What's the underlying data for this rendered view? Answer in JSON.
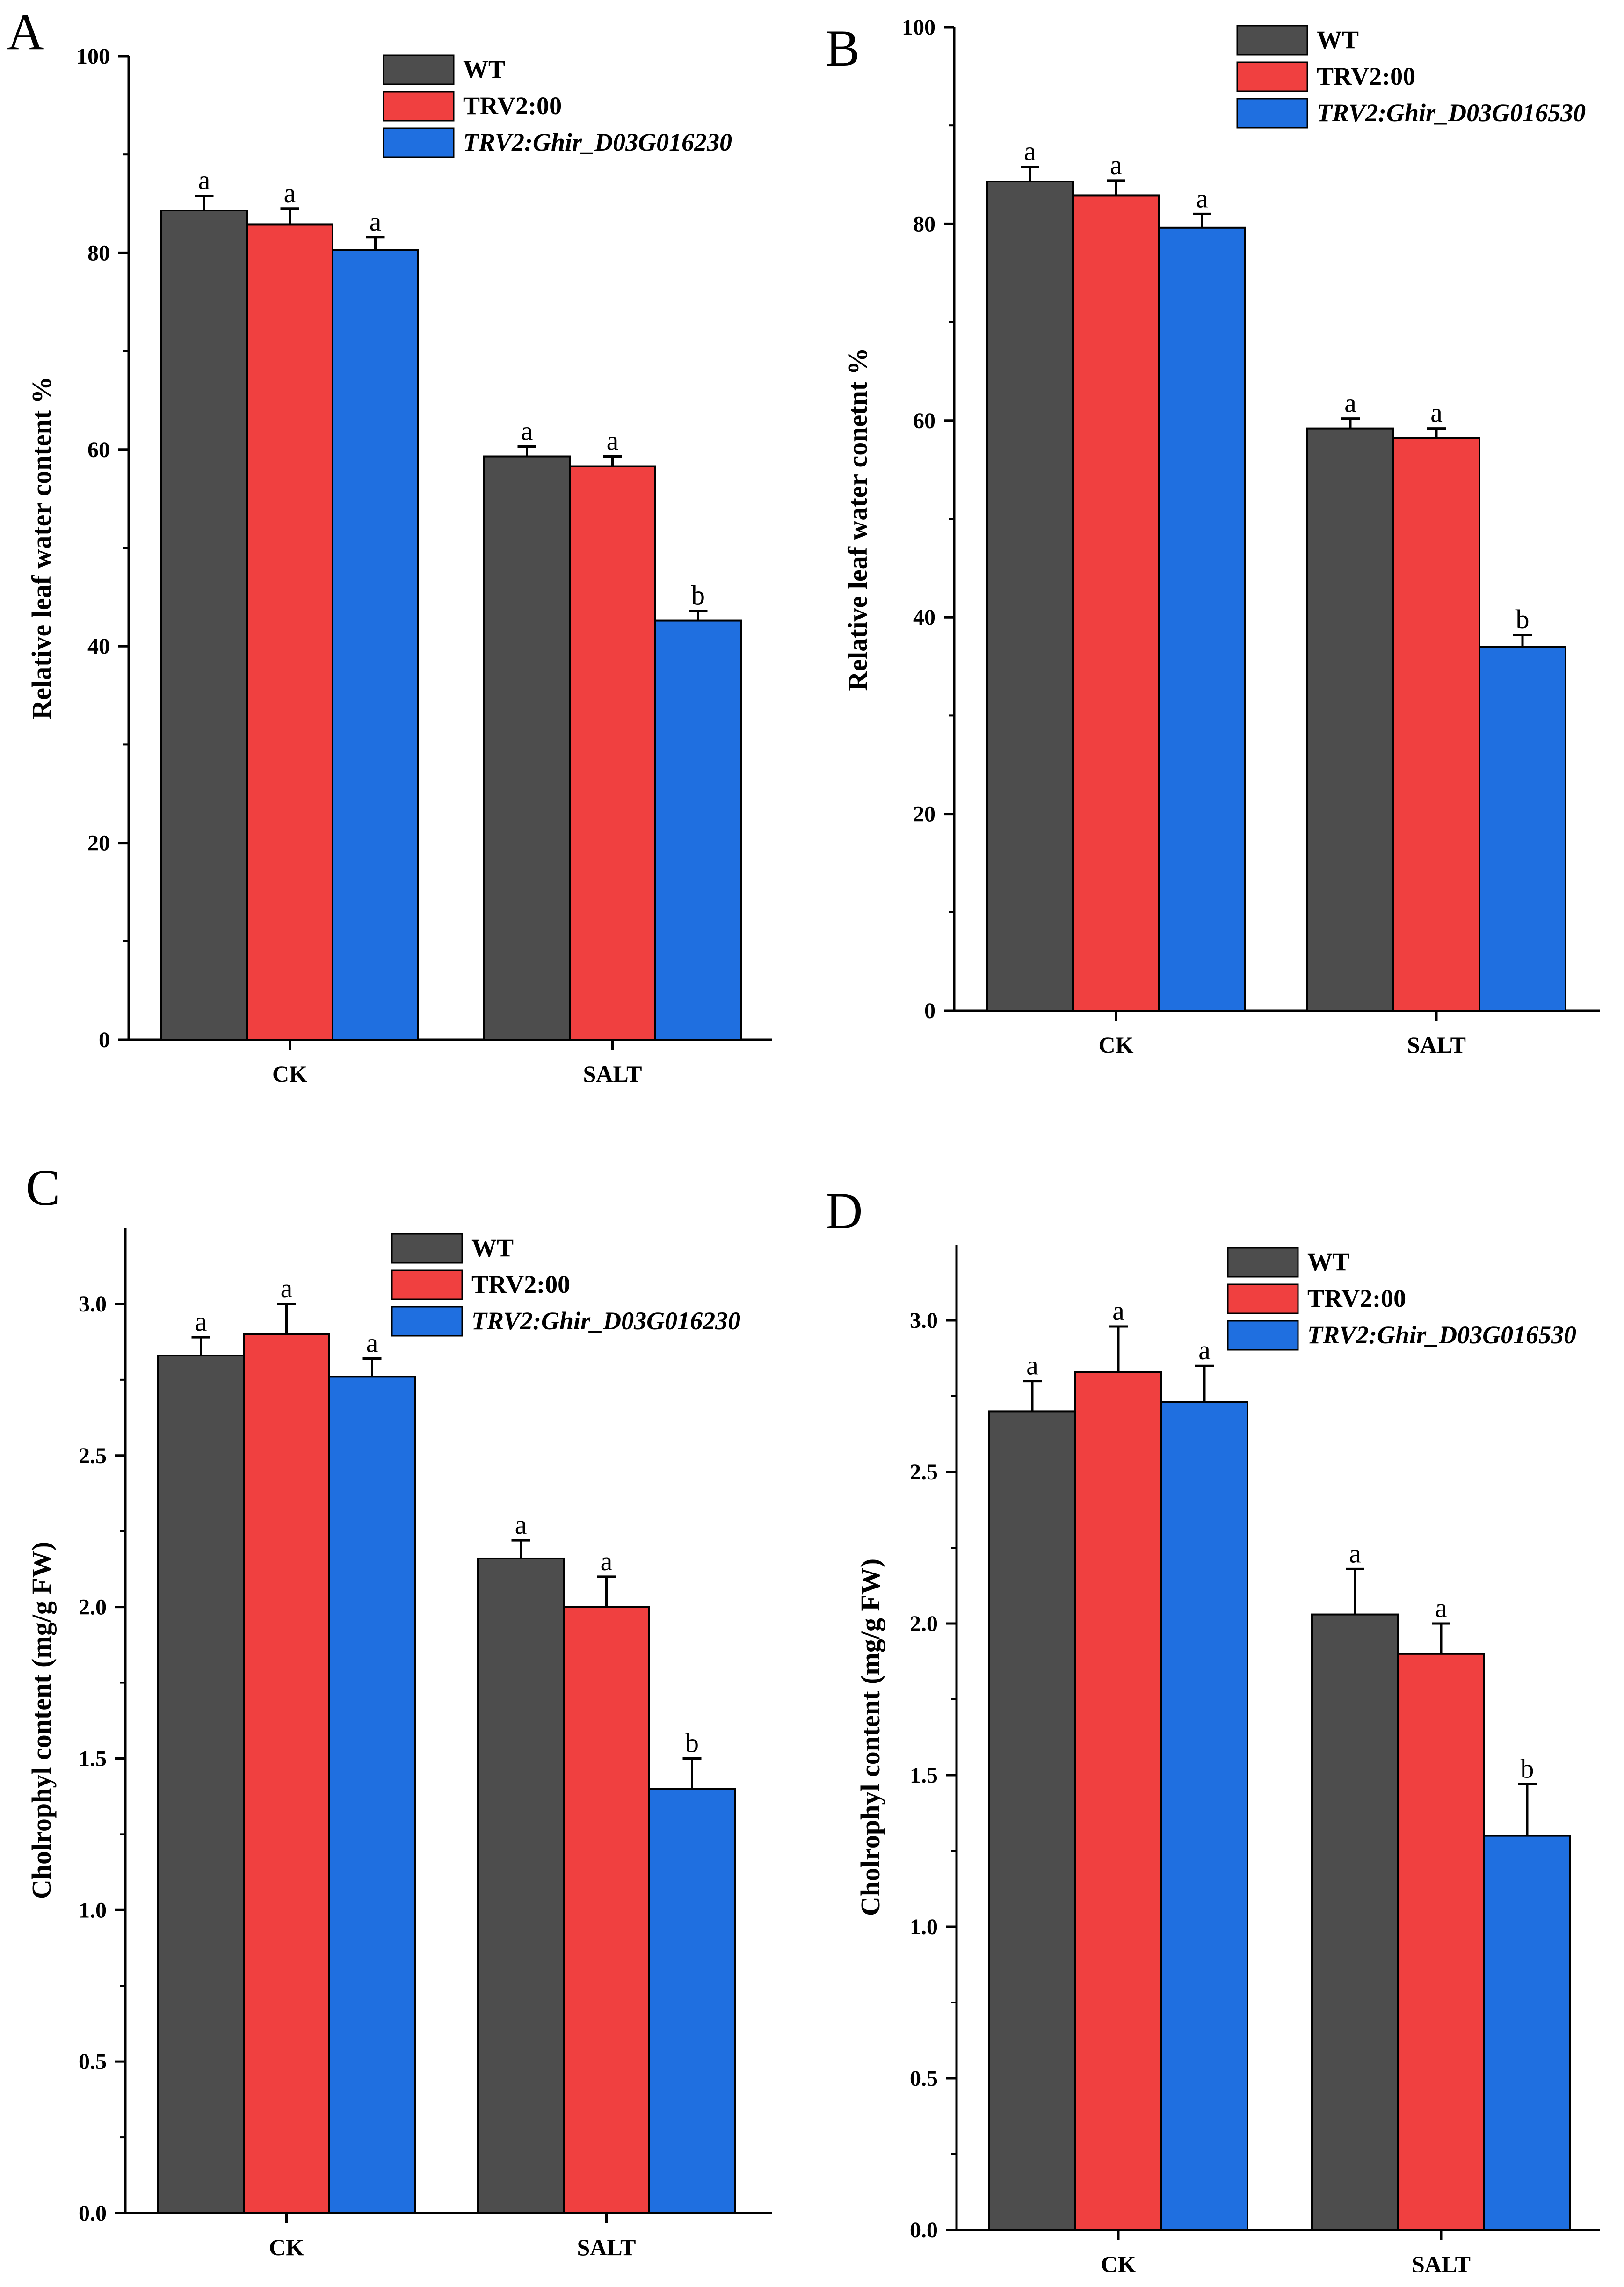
{
  "colors": {
    "WT": "#4d4d4d",
    "TRV2:00": "#f04040",
    "TRV2:Ghir": "#1f6fe0",
    "axis": "#000000"
  },
  "chart_data": [
    {
      "panel": "A",
      "type": "bar",
      "categories": [
        "CK",
        "SALT"
      ],
      "ylabel": "Relative leaf water content %",
      "ylim": [
        0,
        100
      ],
      "yticks": [
        "0",
        "20",
        "40",
        "60",
        "80",
        "100"
      ],
      "series": [
        {
          "name": "WT",
          "italic": false,
          "values": [
            84.3,
            59.3
          ],
          "errors": [
            1.5,
            1.0
          ],
          "labels": [
            "a",
            "a"
          ]
        },
        {
          "name": "TRV2:00",
          "italic": false,
          "values": [
            82.9,
            58.3
          ],
          "errors": [
            1.6,
            1.0
          ],
          "labels": [
            "a",
            "a"
          ]
        },
        {
          "name": "TRV2:Ghir_D03G016230",
          "italic": true,
          "values": [
            80.3,
            42.6
          ],
          "errors": [
            1.3,
            1.0
          ],
          "labels": [
            "a",
            "b"
          ]
        }
      ]
    },
    {
      "panel": "B",
      "type": "bar",
      "categories": [
        "CK",
        "SALT"
      ],
      "ylabel": "Relative leaf water conetnt %",
      "ylim": [
        0,
        100
      ],
      "yticks": [
        "0",
        "20",
        "40",
        "60",
        "80",
        "100"
      ],
      "series": [
        {
          "name": "WT",
          "italic": false,
          "values": [
            84.3,
            59.2
          ],
          "errors": [
            1.5,
            1.0
          ],
          "labels": [
            "a",
            "a"
          ]
        },
        {
          "name": "TRV2:00",
          "italic": false,
          "values": [
            82.9,
            58.2
          ],
          "errors": [
            1.5,
            1.0
          ],
          "labels": [
            "a",
            "a"
          ]
        },
        {
          "name": "TRV2:Ghir_D03G016530",
          "italic": true,
          "values": [
            79.6,
            37.0
          ],
          "errors": [
            1.4,
            1.2
          ],
          "labels": [
            "a",
            "b"
          ]
        }
      ]
    },
    {
      "panel": "C",
      "type": "bar",
      "categories": [
        "CK",
        "SALT"
      ],
      "ylabel": "Cholrophyl content (mg/g FW)",
      "ylim": [
        0,
        3.25
      ],
      "yticks": [
        "0.0",
        "0.5",
        "1.0",
        "1.5",
        "2.0",
        "2.5",
        "3.0"
      ],
      "series": [
        {
          "name": "WT",
          "italic": false,
          "values": [
            2.83,
            2.16
          ],
          "errors": [
            0.06,
            0.06
          ],
          "labels": [
            "a",
            "a"
          ]
        },
        {
          "name": "TRV2:00",
          "italic": false,
          "values": [
            2.9,
            2.0
          ],
          "errors": [
            0.1,
            0.1
          ],
          "labels": [
            "a",
            "a"
          ]
        },
        {
          "name": "TRV2:Ghir_D03G016230",
          "italic": true,
          "values": [
            2.76,
            1.4
          ],
          "errors": [
            0.06,
            0.1
          ],
          "labels": [
            "a",
            "b"
          ]
        }
      ]
    },
    {
      "panel": "D",
      "type": "bar",
      "categories": [
        "CK",
        "SALT"
      ],
      "ylabel": "Cholrophyl content (mg/g FW)",
      "ylim": [
        0,
        3.25
      ],
      "yticks": [
        "0.0",
        "0.5",
        "1.0",
        "1.5",
        "2.0",
        "2.5",
        "3.0"
      ],
      "series": [
        {
          "name": "WT",
          "italic": false,
          "values": [
            2.7,
            2.03
          ],
          "errors": [
            0.1,
            0.15
          ],
          "labels": [
            "a",
            "a"
          ]
        },
        {
          "name": "TRV2:00",
          "italic": false,
          "values": [
            2.83,
            1.9
          ],
          "errors": [
            0.15,
            0.1
          ],
          "labels": [
            "a",
            "a"
          ]
        },
        {
          "name": "TRV2:Ghir_D03G016530",
          "italic": true,
          "values": [
            2.73,
            1.3
          ],
          "errors": [
            0.12,
            0.17
          ],
          "labels": [
            "a",
            "b"
          ]
        }
      ]
    }
  ]
}
